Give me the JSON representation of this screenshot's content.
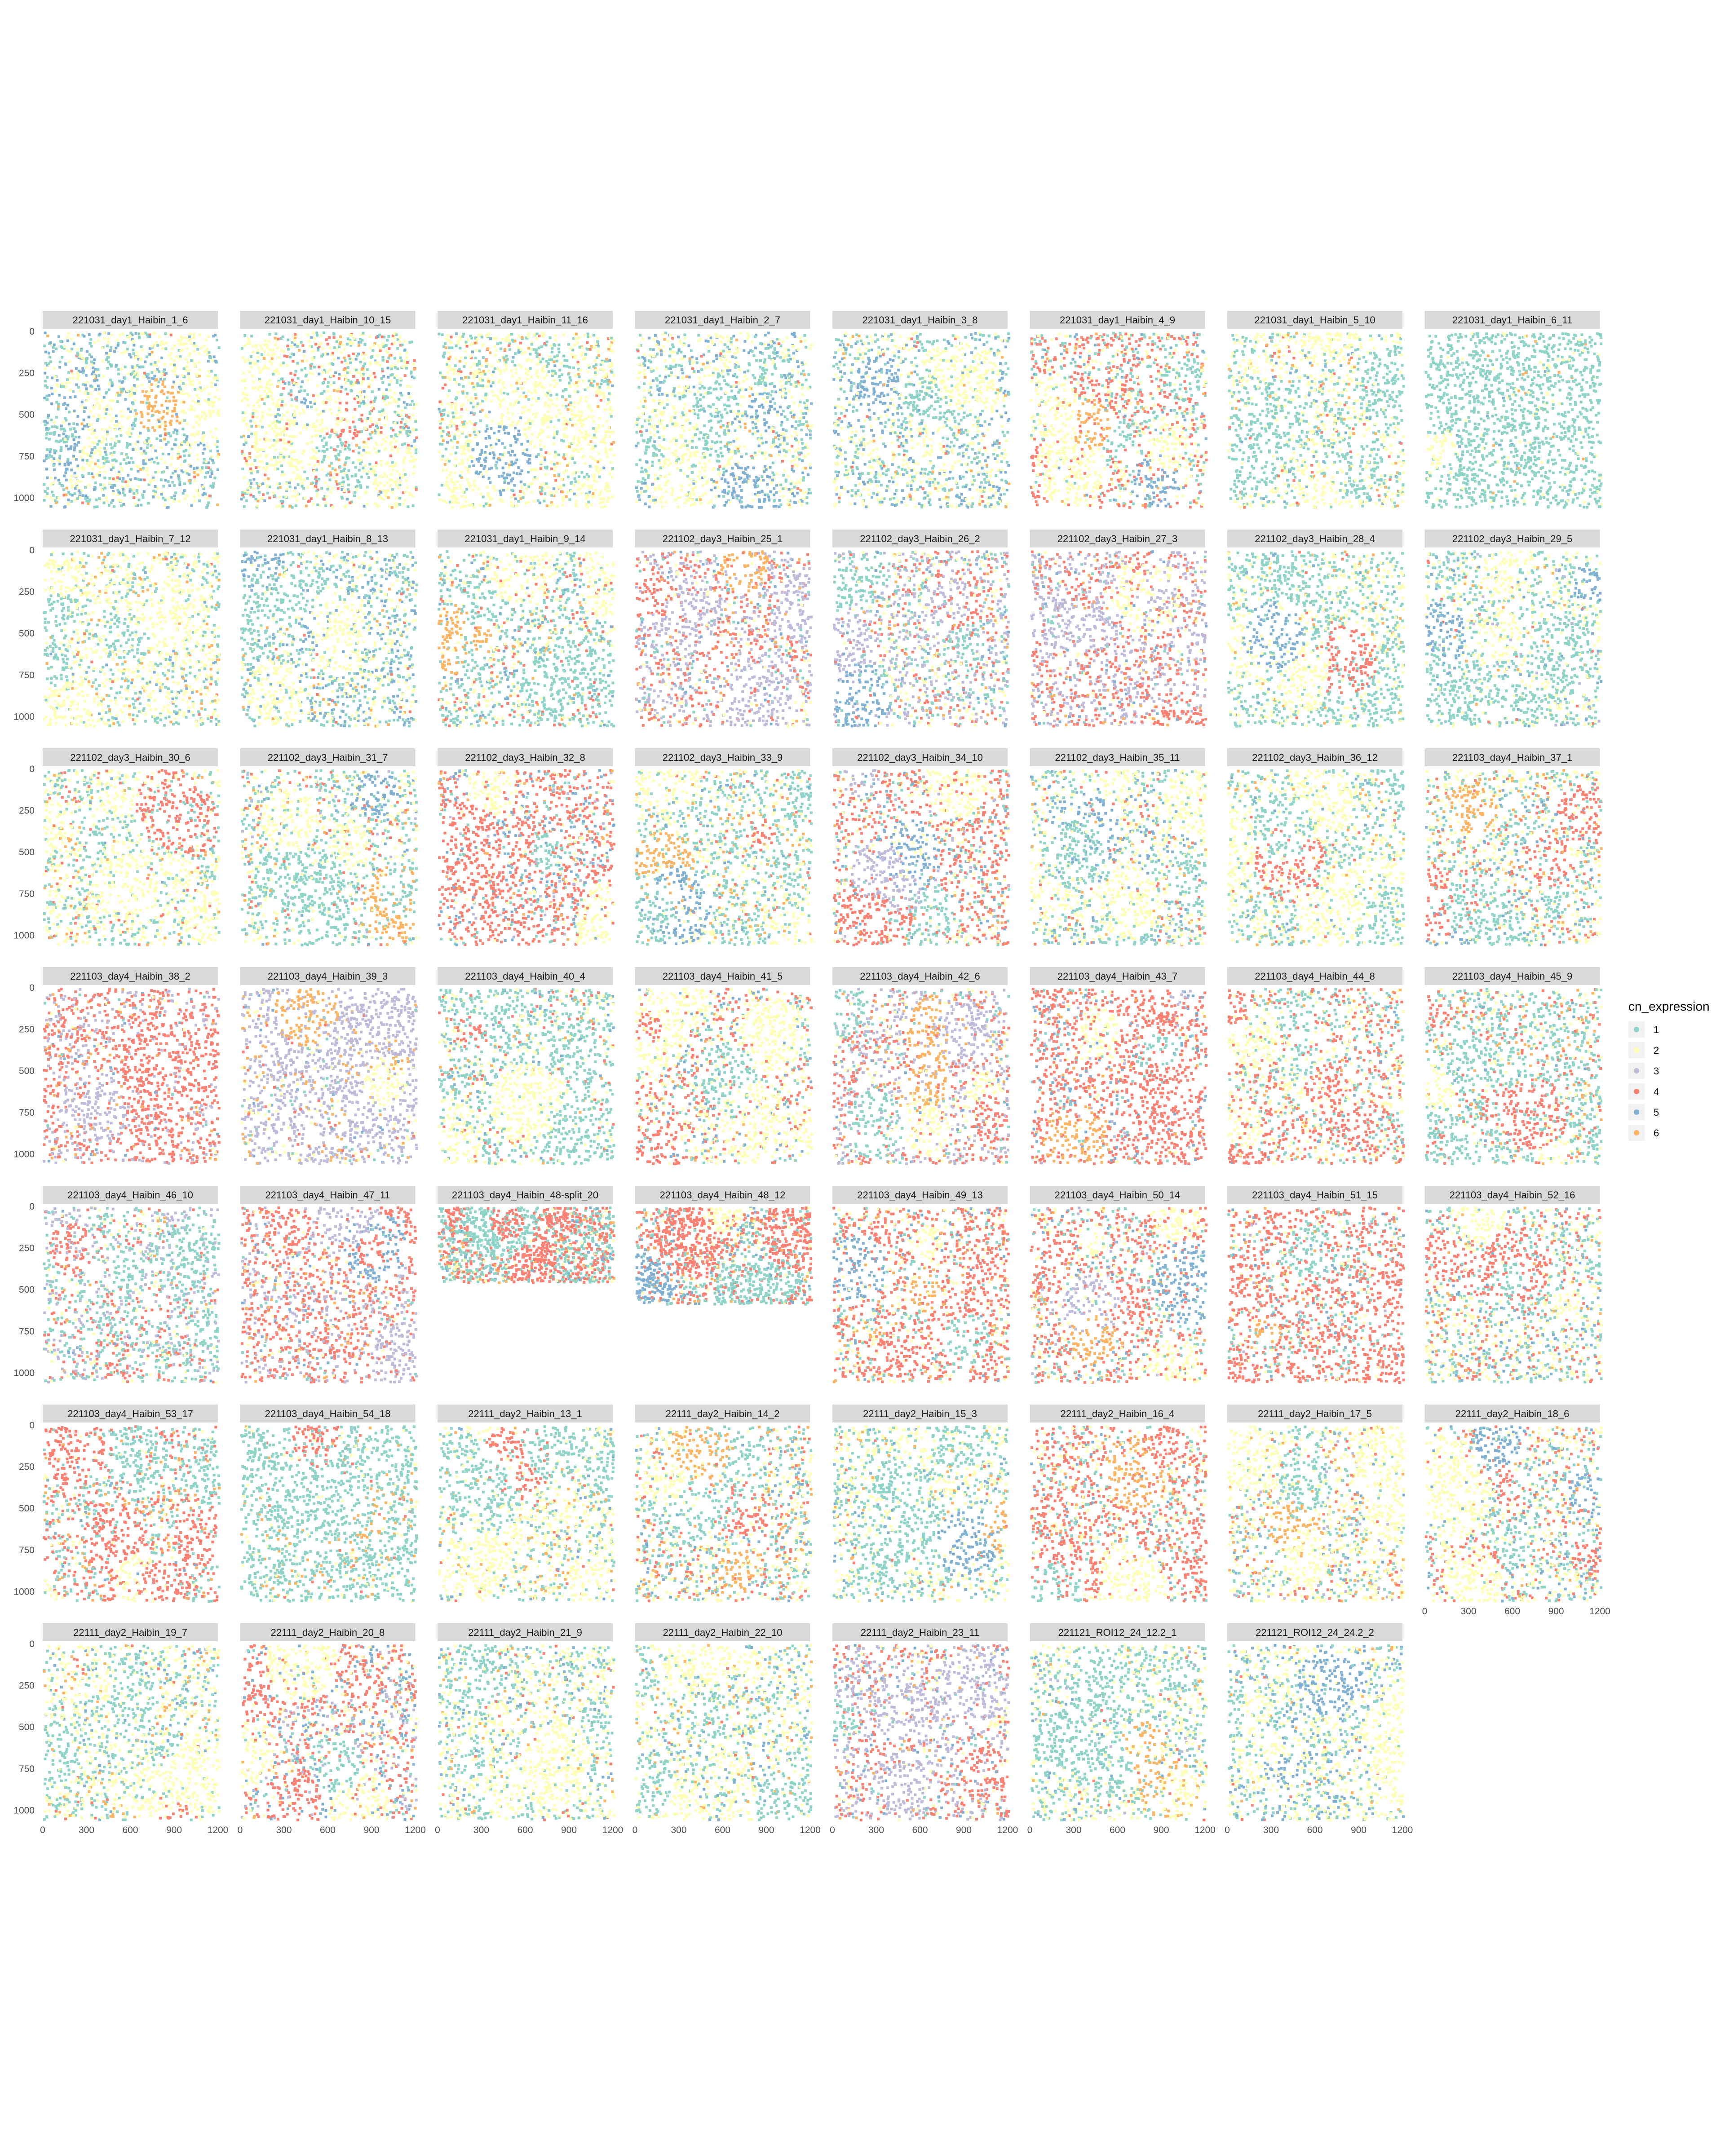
{
  "chart_data": {
    "type": "scatter",
    "layout": "facet_wrap",
    "ncol": 8,
    "xlim": [
      0,
      1200
    ],
    "ylim": [
      0,
      1050
    ],
    "y_reversed": true,
    "x_ticks": [
      "0",
      "300",
      "600",
      "900",
      "1200"
    ],
    "y_ticks": [
      "0",
      "250",
      "500",
      "750",
      "1000"
    ],
    "grid": false,
    "legend_position": "right",
    "legend": {
      "title": "cn_expression",
      "levels": [
        "1",
        "2",
        "3",
        "4",
        "5",
        "6"
      ],
      "colors": [
        "#8DD3C7",
        "#FFFFB3",
        "#BEBADA",
        "#FB8072",
        "#80B1D3",
        "#FDB462"
      ]
    },
    "panels": [
      {
        "title": "221031_day1_Haibin_1_6",
        "mix": [
          0.35,
          0.3,
          0,
          0.02,
          0.3,
          0.03
        ],
        "xr": [
          0,
          1200
        ],
        "yr": [
          0,
          1050
        ]
      },
      {
        "title": "221031_day1_Haibin_10_15",
        "mix": [
          0.35,
          0.35,
          0,
          0.15,
          0.1,
          0.05
        ],
        "xr": [
          0,
          1200
        ],
        "yr": [
          0,
          1050
        ]
      },
      {
        "title": "221031_day1_Haibin_11_16",
        "mix": [
          0.3,
          0.5,
          0,
          0.05,
          0.05,
          0.1
        ],
        "xr": [
          0,
          1200
        ],
        "yr": [
          0,
          1050
        ]
      },
      {
        "title": "221031_day1_Haibin_2_7",
        "mix": [
          0.3,
          0.4,
          0,
          0.02,
          0.25,
          0.03
        ],
        "xr": [
          0,
          1200
        ],
        "yr": [
          0,
          1050
        ]
      },
      {
        "title": "221031_day1_Haibin_3_8",
        "mix": [
          0.35,
          0.35,
          0,
          0.02,
          0.25,
          0.03
        ],
        "xr": [
          0,
          1200
        ],
        "yr": [
          0,
          1050
        ]
      },
      {
        "title": "221031_day1_Haibin_4_9",
        "mix": [
          0.25,
          0.2,
          0,
          0.45,
          0.05,
          0.05
        ],
        "xr": [
          0,
          1200
        ],
        "yr": [
          0,
          1050
        ]
      },
      {
        "title": "221031_day1_Haibin_5_10",
        "mix": [
          0.35,
          0.5,
          0,
          0.05,
          0.05,
          0.05
        ],
        "xr": [
          0,
          1200
        ],
        "yr": [
          0,
          1050
        ]
      },
      {
        "title": "221031_day1_Haibin_6_11",
        "mix": [
          0.9,
          0.08,
          0,
          0,
          0.01,
          0.01
        ],
        "xr": [
          0,
          1200
        ],
        "yr": [
          0,
          1050
        ]
      },
      {
        "title": "221031_day1_Haibin_7_12",
        "mix": [
          0.35,
          0.5,
          0,
          0.02,
          0.05,
          0.08
        ],
        "xr": [
          0,
          1200
        ],
        "yr": [
          0,
          1050
        ]
      },
      {
        "title": "221031_day1_Haibin_8_13",
        "mix": [
          0.4,
          0.3,
          0,
          0.02,
          0.25,
          0.03
        ],
        "xr": [
          0,
          1200
        ],
        "yr": [
          0,
          1050
        ]
      },
      {
        "title": "221031_day1_Haibin_9_14",
        "mix": [
          0.5,
          0.2,
          0,
          0.15,
          0.1,
          0.05
        ],
        "xr": [
          0,
          1200
        ],
        "yr": [
          0,
          1050
        ]
      },
      {
        "title": "221102_day3_Haibin_25_1",
        "mix": [
          0.1,
          0.1,
          0.4,
          0.3,
          0.05,
          0.05
        ],
        "xr": [
          0,
          1200
        ],
        "yr": [
          0,
          1050
        ]
      },
      {
        "title": "221102_day3_Haibin_26_2",
        "mix": [
          0.25,
          0.15,
          0.3,
          0.2,
          0.05,
          0.05
        ],
        "xr": [
          0,
          1200
        ],
        "yr": [
          0,
          1050
        ]
      },
      {
        "title": "221102_day3_Haibin_27_3",
        "mix": [
          0.05,
          0.05,
          0.4,
          0.4,
          0.05,
          0.05
        ],
        "xr": [
          0,
          1200
        ],
        "yr": [
          0,
          1050
        ]
      },
      {
        "title": "221102_day3_Haibin_28_4",
        "mix": [
          0.6,
          0.3,
          0,
          0.02,
          0.03,
          0.05
        ],
        "xr": [
          0,
          1200
        ],
        "yr": [
          0,
          1050
        ]
      },
      {
        "title": "221102_day3_Haibin_29_5",
        "mix": [
          0.5,
          0.35,
          0.05,
          0.02,
          0.05,
          0.03
        ],
        "xr": [
          0,
          1200
        ],
        "yr": [
          0,
          1050
        ]
      },
      {
        "title": "221102_day3_Haibin_30_6",
        "mix": [
          0.35,
          0.45,
          0,
          0.1,
          0.02,
          0.08
        ],
        "xr": [
          0,
          1200
        ],
        "yr": [
          0,
          1050
        ]
      },
      {
        "title": "221102_day3_Haibin_31_7",
        "mix": [
          0.45,
          0.3,
          0.03,
          0.1,
          0.05,
          0.07
        ],
        "xr": [
          0,
          1200
        ],
        "yr": [
          0,
          1050
        ]
      },
      {
        "title": "221102_day3_Haibin_32_8",
        "mix": [
          0.1,
          0.05,
          0.05,
          0.6,
          0.15,
          0.05
        ],
        "xr": [
          0,
          1200
        ],
        "yr": [
          0,
          1050
        ]
      },
      {
        "title": "221102_day3_Haibin_33_9",
        "mix": [
          0.5,
          0.3,
          0,
          0.05,
          0.05,
          0.1
        ],
        "xr": [
          0,
          1200
        ],
        "yr": [
          0,
          1050
        ]
      },
      {
        "title": "221102_day3_Haibin_34_10",
        "mix": [
          0.15,
          0.15,
          0.05,
          0.5,
          0.1,
          0.05
        ],
        "xr": [
          0,
          1200
        ],
        "yr": [
          0,
          1050
        ]
      },
      {
        "title": "221102_day3_Haibin_35_11",
        "mix": [
          0.3,
          0.4,
          0,
          0.1,
          0.15,
          0.05
        ],
        "xr": [
          0,
          1200
        ],
        "yr": [
          0,
          1050
        ]
      },
      {
        "title": "221102_day3_Haibin_36_12",
        "mix": [
          0.5,
          0.35,
          0,
          0.03,
          0.05,
          0.07
        ],
        "xr": [
          0,
          1200
        ],
        "yr": [
          0,
          1050
        ]
      },
      {
        "title": "221103_day4_Haibin_37_1",
        "mix": [
          0.35,
          0.3,
          0,
          0.15,
          0.1,
          0.1
        ],
        "xr": [
          0,
          1200
        ],
        "yr": [
          0,
          1050
        ]
      },
      {
        "title": "221103_day4_Haibin_38_2",
        "mix": [
          0.02,
          0.03,
          0.3,
          0.55,
          0.03,
          0.07
        ],
        "xr": [
          0,
          1200
        ],
        "yr": [
          0,
          1050
        ]
      },
      {
        "title": "221103_day4_Haibin_39_3",
        "mix": [
          0.05,
          0.1,
          0.7,
          0.05,
          0.02,
          0.08
        ],
        "xr": [
          0,
          1200
        ],
        "yr": [
          0,
          1050
        ]
      },
      {
        "title": "221103_day4_Haibin_40_4",
        "mix": [
          0.6,
          0.2,
          0,
          0.1,
          0.05,
          0.05
        ],
        "xr": [
          0,
          1200
        ],
        "yr": [
          0,
          1050
        ]
      },
      {
        "title": "221103_day4_Haibin_41_5",
        "mix": [
          0.2,
          0.3,
          0,
          0.35,
          0.1,
          0.05
        ],
        "xr": [
          0,
          1200
        ],
        "yr": [
          0,
          1050
        ]
      },
      {
        "title": "221103_day4_Haibin_42_6",
        "mix": [
          0.1,
          0.1,
          0.35,
          0.35,
          0.05,
          0.05
        ],
        "xr": [
          0,
          1200
        ],
        "yr": [
          0,
          1050
        ]
      },
      {
        "title": "221103_day4_Haibin_43_7",
        "mix": [
          0.05,
          0.05,
          0.05,
          0.7,
          0.12,
          0.03
        ],
        "xr": [
          0,
          1200
        ],
        "yr": [
          0,
          1050
        ]
      },
      {
        "title": "221103_day4_Haibin_44_8",
        "mix": [
          0.25,
          0.25,
          0,
          0.4,
          0.05,
          0.05
        ],
        "xr": [
          0,
          1200
        ],
        "yr": [
          0,
          1050
        ]
      },
      {
        "title": "221103_day4_Haibin_45_9",
        "mix": [
          0.6,
          0.15,
          0,
          0.15,
          0.02,
          0.08
        ],
        "xr": [
          0,
          1200
        ],
        "yr": [
          0,
          1050
        ]
      },
      {
        "title": "221103_day4_Haibin_46_10",
        "mix": [
          0.45,
          0.1,
          0.2,
          0.2,
          0.02,
          0.03
        ],
        "xr": [
          0,
          1200
        ],
        "yr": [
          0,
          1050
        ]
      },
      {
        "title": "221103_day4_Haibin_47_11",
        "mix": [
          0.05,
          0.05,
          0.25,
          0.55,
          0.05,
          0.05
        ],
        "xr": [
          0,
          1200
        ],
        "yr": [
          0,
          1050
        ]
      },
      {
        "title": "221103_day4_Haibin_48-split_20",
        "mix": [
          0.4,
          0.1,
          0,
          0.4,
          0.05,
          0.05
        ],
        "xr": [
          0,
          1200
        ],
        "yr": [
          0,
          450
        ]
      },
      {
        "title": "221103_day4_Haibin_48_12",
        "mix": [
          0.3,
          0.1,
          0,
          0.4,
          0.1,
          0.1
        ],
        "xr": [
          0,
          1200
        ],
        "yr": [
          0,
          580
        ]
      },
      {
        "title": "221103_day4_Haibin_49_13",
        "mix": [
          0.15,
          0.2,
          0,
          0.5,
          0.05,
          0.1
        ],
        "xr": [
          0,
          1200
        ],
        "yr": [
          0,
          1050
        ]
      },
      {
        "title": "221103_day4_Haibin_50_14",
        "mix": [
          0.2,
          0.15,
          0.05,
          0.5,
          0.07,
          0.03
        ],
        "xr": [
          0,
          1200
        ],
        "yr": [
          0,
          1050
        ]
      },
      {
        "title": "221103_day4_Haibin_51_15",
        "mix": [
          0.15,
          0.1,
          0.02,
          0.65,
          0.05,
          0.03
        ],
        "xr": [
          0,
          1200
        ],
        "yr": [
          0,
          1050
        ]
      },
      {
        "title": "221103_day4_Haibin_52_16",
        "mix": [
          0.35,
          0.3,
          0,
          0.2,
          0.1,
          0.05
        ],
        "xr": [
          0,
          1200
        ],
        "yr": [
          0,
          1050
        ]
      },
      {
        "title": "221103_day4_Haibin_53_17",
        "mix": [
          0.4,
          0.1,
          0,
          0.35,
          0.03,
          0.12
        ],
        "xr": [
          0,
          1200
        ],
        "yr": [
          0,
          1050
        ]
      },
      {
        "title": "221103_day4_Haibin_54_18",
        "mix": [
          0.8,
          0.1,
          0,
          0.02,
          0,
          0.08
        ],
        "xr": [
          0,
          1200
        ],
        "yr": [
          0,
          1050
        ]
      },
      {
        "title": "22111_day2_Haibin_13_1",
        "mix": [
          0.3,
          0.5,
          0,
          0.05,
          0.05,
          0.1
        ],
        "xr": [
          0,
          1200
        ],
        "yr": [
          0,
          1050
        ]
      },
      {
        "title": "22111_day2_Haibin_14_2",
        "mix": [
          0.3,
          0.3,
          0,
          0.2,
          0.1,
          0.1
        ],
        "xr": [
          0,
          1200
        ],
        "yr": [
          0,
          1050
        ]
      },
      {
        "title": "22111_day2_Haibin_15_3",
        "mix": [
          0.4,
          0.45,
          0,
          0.03,
          0.07,
          0.05
        ],
        "xr": [
          0,
          1200
        ],
        "yr": [
          0,
          1050
        ]
      },
      {
        "title": "22111_day2_Haibin_16_4",
        "mix": [
          0.2,
          0.2,
          0,
          0.5,
          0.05,
          0.05
        ],
        "xr": [
          0,
          1200
        ],
        "yr": [
          0,
          1050
        ]
      },
      {
        "title": "22111_day2_Haibin_17_5",
        "mix": [
          0.25,
          0.45,
          0.05,
          0.1,
          0.05,
          0.1
        ],
        "xr": [
          0,
          1200
        ],
        "yr": [
          0,
          1050
        ]
      },
      {
        "title": "22111_day2_Haibin_18_6",
        "mix": [
          0.3,
          0.3,
          0,
          0.2,
          0.15,
          0.05
        ],
        "xr": [
          0,
          1200
        ],
        "yr": [
          0,
          1050
        ]
      },
      {
        "title": "22111_day2_Haibin_19_7",
        "mix": [
          0.4,
          0.45,
          0,
          0.03,
          0.05,
          0.07
        ],
        "xr": [
          0,
          1200
        ],
        "yr": [
          0,
          1050
        ]
      },
      {
        "title": "22111_day2_Haibin_20_8",
        "mix": [
          0.1,
          0.15,
          0.15,
          0.35,
          0.2,
          0.05
        ],
        "xr": [
          0,
          1200
        ],
        "yr": [
          0,
          1050
        ]
      },
      {
        "title": "22111_day2_Haibin_21_9",
        "mix": [
          0.35,
          0.45,
          0,
          0.05,
          0.1,
          0.05
        ],
        "xr": [
          0,
          1200
        ],
        "yr": [
          0,
          1050
        ]
      },
      {
        "title": "22111_day2_Haibin_22_10",
        "mix": [
          0.35,
          0.45,
          0,
          0.03,
          0.1,
          0.07
        ],
        "xr": [
          0,
          1200
        ],
        "yr": [
          0,
          1050
        ]
      },
      {
        "title": "22111_day2_Haibin_23_11",
        "mix": [
          0.1,
          0.1,
          0.35,
          0.3,
          0.1,
          0.05
        ],
        "xr": [
          0,
          1200
        ],
        "yr": [
          0,
          1050
        ]
      },
      {
        "title": "221121_ROI12_24_12.2_1",
        "mix": [
          0.45,
          0.4,
          0.03,
          0.02,
          0.07,
          0.03
        ],
        "xr": [
          0,
          1200
        ],
        "yr": [
          0,
          1050
        ]
      },
      {
        "title": "221121_ROI12_24_24.2_2",
        "mix": [
          0.3,
          0.45,
          0,
          0.02,
          0.2,
          0.03
        ],
        "xr": [
          0,
          1200
        ],
        "yr": [
          0,
          1050
        ]
      }
    ]
  }
}
